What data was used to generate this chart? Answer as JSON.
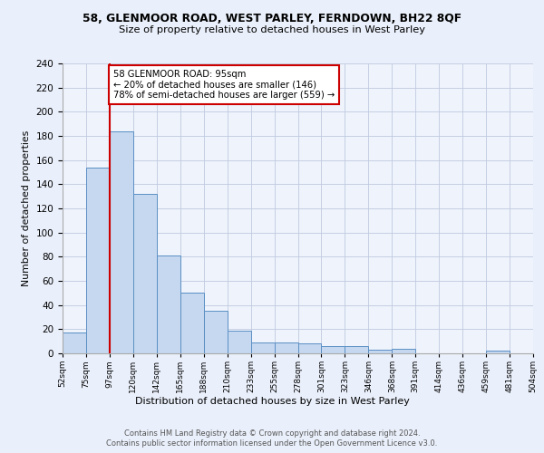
{
  "title1": "58, GLENMOOR ROAD, WEST PARLEY, FERNDOWN, BH22 8QF",
  "title2": "Size of property relative to detached houses in West Parley",
  "xlabel": "Distribution of detached houses by size in West Parley",
  "ylabel": "Number of detached properties",
  "tick_labels": [
    "52sqm",
    "75sqm",
    "97sqm",
    "120sqm",
    "142sqm",
    "165sqm",
    "188sqm",
    "210sqm",
    "233sqm",
    "255sqm",
    "278sqm",
    "301sqm",
    "323sqm",
    "346sqm",
    "368sqm",
    "391sqm",
    "414sqm",
    "436sqm",
    "459sqm",
    "481sqm",
    "504sqm"
  ],
  "bar_heights": [
    17,
    154,
    184,
    132,
    81,
    50,
    35,
    19,
    9,
    9,
    8,
    6,
    6,
    3,
    4,
    0,
    0,
    0,
    2,
    0
  ],
  "bar_color": "#c5d8f0",
  "bar_edge_color": "#5b8fc4",
  "property_line_bin": 2,
  "annotation_text": "58 GLENMOOR ROAD: 95sqm\n← 20% of detached houses are smaller (146)\n78% of semi-detached houses are larger (559) →",
  "vline_color": "#cc0000",
  "annotation_box_edge": "#cc0000",
  "footer1": "Contains HM Land Registry data © Crown copyright and database right 2024.",
  "footer2": "Contains public sector information licensed under the Open Government Licence v3.0.",
  "bg_color": "#eaf0fb",
  "plot_bg_color": "#eef3fc",
  "ylim": [
    0,
    240
  ],
  "yticks": [
    0,
    20,
    40,
    60,
    80,
    100,
    120,
    140,
    160,
    180,
    200,
    220,
    240
  ]
}
